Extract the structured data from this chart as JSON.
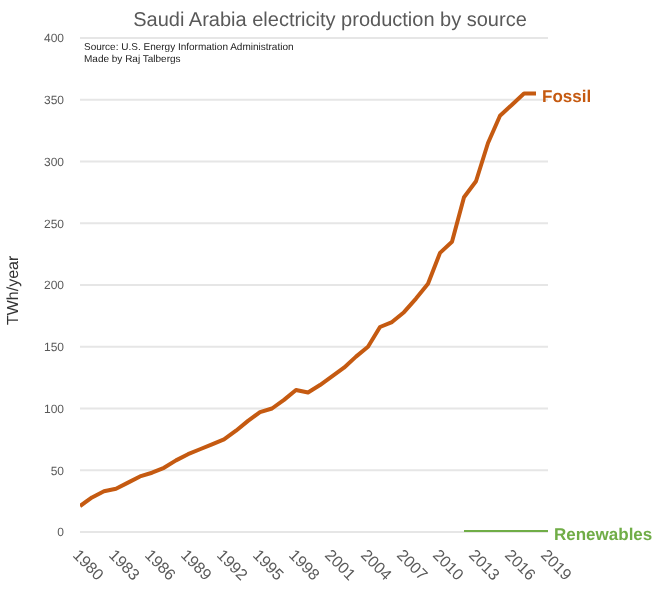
{
  "chart_data": {
    "type": "line",
    "title": "Saudi Arabia electricity production by source",
    "ylabel": "TWh/year",
    "annotations": [
      "Source: U.S. Energy Information Administration",
      "Made by Raj Talbergs"
    ],
    "x": [
      1980,
      1981,
      1982,
      1983,
      1984,
      1985,
      1986,
      1987,
      1988,
      1989,
      1990,
      1991,
      1992,
      1993,
      1994,
      1995,
      1996,
      1997,
      1998,
      1999,
      2000,
      2001,
      2002,
      2003,
      2004,
      2005,
      2006,
      2007,
      2008,
      2009,
      2010,
      2011,
      2012,
      2013,
      2014,
      2015,
      2016,
      2017,
      2018,
      2019
    ],
    "series": [
      {
        "name": "Fossil",
        "color": "#c55a11",
        "values": [
          21,
          28,
          33,
          35,
          40,
          45,
          48,
          52,
          58,
          63,
          67,
          71,
          75,
          82,
          90,
          97,
          100,
          107,
          115,
          113,
          119,
          126,
          133,
          142,
          150,
          166,
          170,
          178,
          189,
          201,
          226,
          235,
          271,
          284,
          315,
          337,
          346,
          355,
          355,
          null
        ]
      },
      {
        "name": "Renewables",
        "color": "#70ad47",
        "values": [
          null,
          null,
          null,
          null,
          null,
          null,
          null,
          null,
          null,
          null,
          null,
          null,
          null,
          null,
          null,
          null,
          null,
          null,
          null,
          null,
          null,
          null,
          null,
          null,
          null,
          null,
          null,
          null,
          null,
          null,
          null,
          null,
          0,
          0,
          0,
          0,
          0,
          0,
          0,
          0
        ]
      }
    ],
    "xlim": [
      1980,
      2019
    ],
    "xticks": [
      1980,
      1983,
      1986,
      1989,
      1992,
      1995,
      1998,
      2001,
      2004,
      2007,
      2010,
      2013,
      2016,
      2019
    ],
    "ylim": [
      0,
      400
    ],
    "yticks": [
      0,
      50,
      100,
      150,
      200,
      250,
      300,
      350,
      400
    ],
    "grid": "y",
    "legend": false,
    "marker": "none",
    "line_style": "solid"
  }
}
